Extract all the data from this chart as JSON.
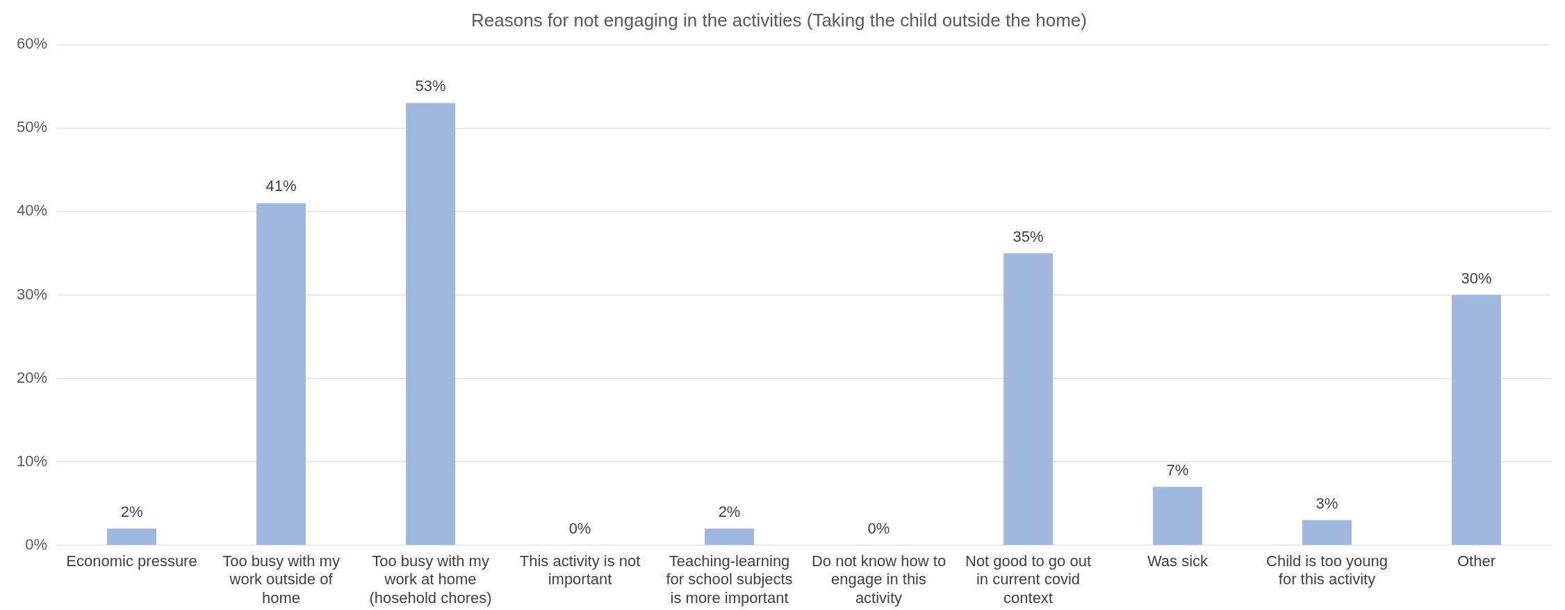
{
  "chart_data": {
    "type": "bar",
    "title": "Reasons for not engaging in the activities (Taking the child outside the home)",
    "categories": [
      "Economic pressure",
      "Too busy with my work outside of home",
      "Too busy with my work at home (hosehold chores)",
      "This activity is not important",
      "Teaching-learning for school subjects is more important",
      "Do not know how to engage in this activity",
      "Not good to go out in current covid context",
      "Was sick",
      "Child is too young for this activity",
      "Other"
    ],
    "values": [
      2,
      41,
      53,
      0,
      2,
      0,
      35,
      7,
      3,
      30
    ],
    "value_labels": [
      "2%",
      "41%",
      "53%",
      "0%",
      "2%",
      "0%",
      "35%",
      "7%",
      "3%",
      "30%"
    ],
    "color": "#a0b8e0",
    "ylim": [
      0,
      60
    ],
    "yticks": [
      {
        "value": 0,
        "label": "0%"
      },
      {
        "value": 10,
        "label": "10%"
      },
      {
        "value": 20,
        "label": "20%"
      },
      {
        "value": 30,
        "label": "30%"
      },
      {
        "value": 40,
        "label": "40%"
      },
      {
        "value": 50,
        "label": "50%"
      },
      {
        "value": 60,
        "label": "60%"
      }
    ],
    "grid": "y",
    "legend": false
  }
}
